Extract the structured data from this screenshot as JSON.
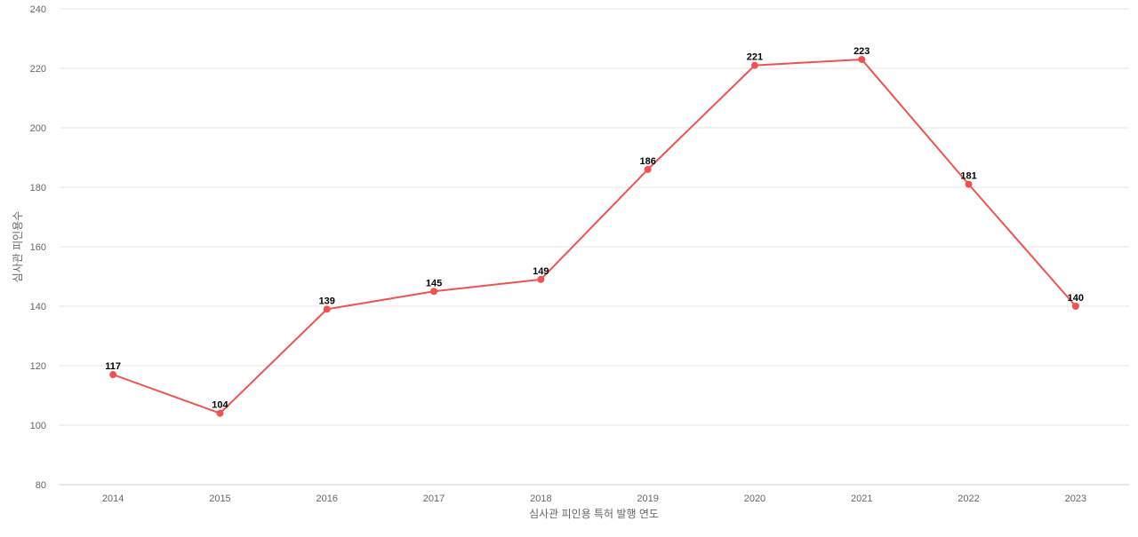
{
  "chart_data": {
    "type": "line",
    "title": "",
    "xlabel": "심사관 피인용 특허 발행 연도",
    "ylabel": "심사관 피인용수",
    "categories": [
      "2014",
      "2015",
      "2016",
      "2017",
      "2018",
      "2019",
      "2020",
      "2021",
      "2022",
      "2023"
    ],
    "series": [
      {
        "values": [
          117,
          104,
          139,
          145,
          149,
          186,
          221,
          223,
          181,
          140
        ],
        "color": "#ef5350"
      }
    ],
    "ylim": [
      80,
      240
    ],
    "yticks": [
      80,
      100,
      120,
      140,
      160,
      180,
      200,
      220,
      240
    ],
    "grid": true,
    "data_labels": true,
    "legend": "none"
  }
}
